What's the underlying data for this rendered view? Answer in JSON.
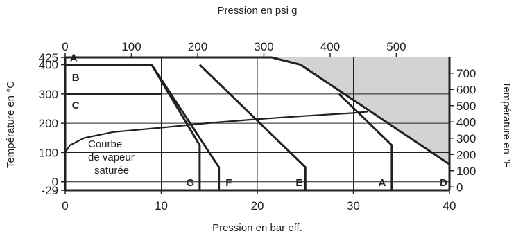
{
  "chart_data": {
    "type": "line",
    "title": "",
    "xlabel_bottom": "Pression en bar eff.",
    "xlabel_top": "Pression en psi g",
    "ylabel_left": "Température en °C",
    "ylabel_right": "Température en °F",
    "xlim": [
      0,
      40
    ],
    "ylim": [
      -29,
      425
    ],
    "x_ticks": [
      "0",
      "10",
      "20",
      "30",
      "40"
    ],
    "x_tick_values": [
      0,
      10,
      20,
      30,
      40
    ],
    "top_ticks": [
      "0",
      "100",
      "200",
      "300",
      "400",
      "500"
    ],
    "top_tick_values_psi": [
      0,
      100,
      200,
      300,
      400,
      500
    ],
    "psi_per_bar": 14.5038,
    "y_ticks": [
      "-29",
      "0",
      "100",
      "200",
      "300",
      "400",
      "425"
    ],
    "y_tick_values": [
      -29,
      0,
      100,
      200,
      300,
      400,
      425
    ],
    "right_ticks": [
      "0",
      "100",
      "200",
      "300",
      "400",
      "500",
      "600",
      "700"
    ],
    "right_tick_values_f": [
      0,
      100,
      200,
      300,
      400,
      500,
      600,
      700
    ],
    "grid": true,
    "shaded_region": {
      "color": "#d1d3d4",
      "points": [
        [
          21.5,
          425
        ],
        [
          24.5,
          400
        ],
        [
          40,
          60
        ],
        [
          40,
          425
        ]
      ]
    },
    "limit_line": [
      [
        0,
        425
      ],
      [
        21.5,
        425
      ],
      [
        24.5,
        400
      ],
      [
        40,
        60
      ]
    ],
    "series": [
      {
        "name": "",
        "points": [
          [
            0,
            400
          ],
          [
            9,
            400
          ],
          [
            14,
            125
          ],
          [
            14,
            -29
          ]
        ]
      },
      {
        "name": "",
        "points": [
          [
            9,
            400
          ],
          [
            16,
            50
          ],
          [
            16,
            -29
          ]
        ]
      },
      {
        "name": "",
        "points": [
          [
            14,
            400
          ],
          [
            25,
            50
          ],
          [
            25,
            -29
          ]
        ]
      },
      {
        "name": "",
        "points": [
          [
            28.5,
            300
          ],
          [
            34,
            125
          ],
          [
            34,
            -29
          ]
        ]
      }
    ],
    "region_B_line": [
      [
        0,
        400
      ],
      [
        9,
        400
      ]
    ],
    "region_C_line": [
      [
        0,
        300
      ],
      [
        10,
        300
      ]
    ],
    "saturated_steam_curve": [
      [
        0,
        100
      ],
      [
        0.5,
        125
      ],
      [
        2,
        150
      ],
      [
        5,
        170
      ],
      [
        10,
        185
      ],
      [
        15,
        201
      ],
      [
        20,
        214
      ],
      [
        25,
        225
      ],
      [
        30,
        235
      ],
      [
        31.5,
        240
      ]
    ],
    "region_labels": [
      {
        "text": "A",
        "x": 0.5,
        "y": 412
      },
      {
        "text": "B",
        "x": 0.7,
        "y": 345
      },
      {
        "text": "C",
        "x": 0.7,
        "y": 250
      },
      {
        "text": "G",
        "x": 12.6,
        "y": -15
      },
      {
        "text": "F",
        "x": 16.7,
        "y": -15
      },
      {
        "text": "E",
        "x": 24.0,
        "y": -15
      },
      {
        "text": "A",
        "x": 32.6,
        "y": -15
      },
      {
        "text": "D",
        "x": 39.0,
        "y": -15
      }
    ],
    "annotation_lines": [
      "Courbe",
      "de vapeur",
      "saturée"
    ]
  }
}
